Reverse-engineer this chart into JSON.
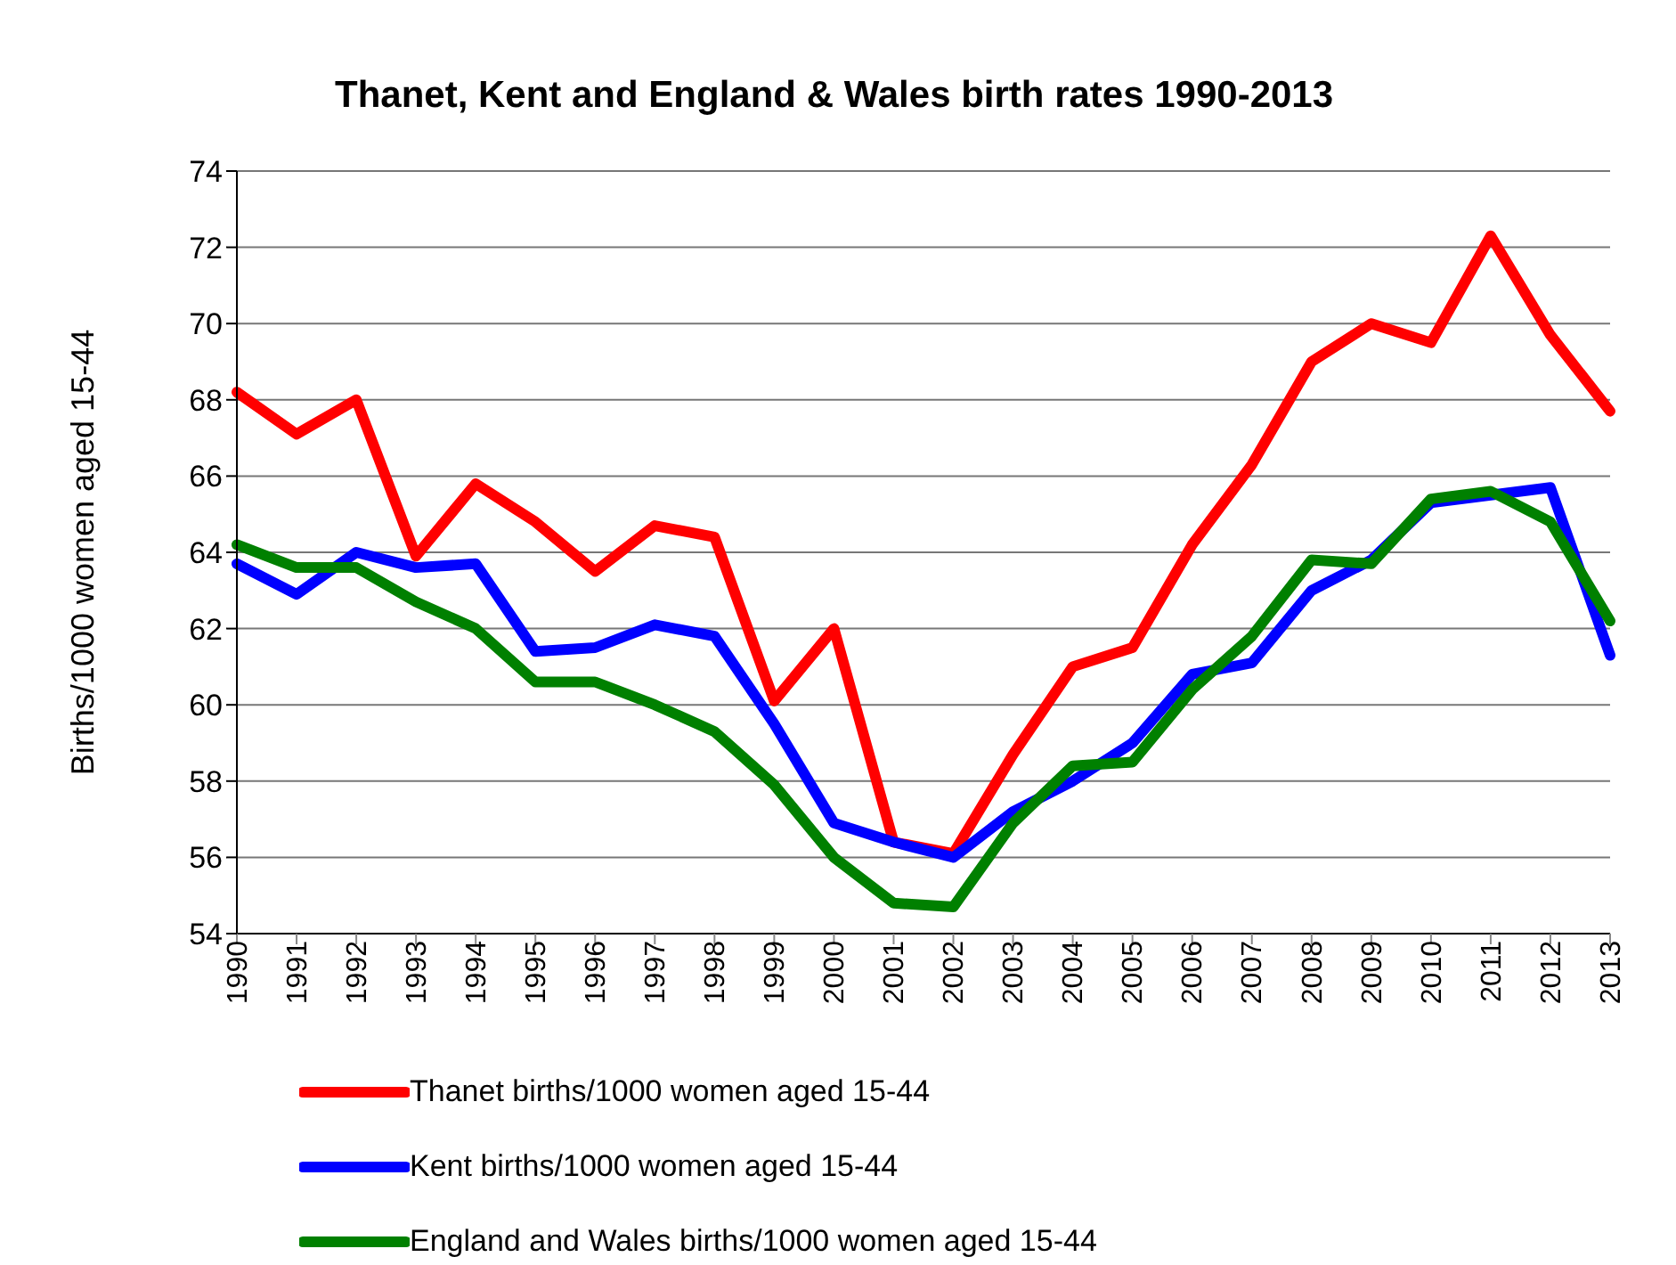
{
  "chart_data": {
    "type": "line",
    "title": "Thanet, Kent and England & Wales birth rates 1990-2013",
    "ylabel": "Births/1000 women aged 15-44",
    "categories": [
      "1990",
      "1991",
      "1992",
      "1993",
      "1994",
      "1995",
      "1996",
      "1997",
      "1998",
      "1999",
      "2000",
      "2001",
      "2002",
      "2003",
      "2004",
      "2005",
      "2006",
      "2007",
      "2008",
      "2009",
      "2010",
      "2011",
      "2012",
      "2013"
    ],
    "series": [
      {
        "name": "Thanet births/1000 women aged 15-44",
        "color": "#ff0000",
        "values": [
          68.2,
          67.1,
          68.0,
          63.9,
          65.8,
          64.8,
          63.5,
          64.7,
          64.4,
          60.1,
          62.0,
          56.4,
          56.1,
          58.7,
          61.0,
          61.5,
          64.2,
          66.3,
          69.0,
          70.0,
          69.5,
          72.3,
          69.7,
          67.7
        ]
      },
      {
        "name": "Kent births/1000 women aged 15-44",
        "color": "#0000ff",
        "values": [
          63.7,
          62.9,
          64.0,
          63.6,
          63.7,
          61.4,
          61.5,
          62.1,
          61.8,
          59.5,
          56.9,
          56.4,
          56.0,
          57.2,
          58.0,
          59.0,
          60.8,
          61.1,
          63.0,
          63.8,
          65.3,
          65.5,
          65.7,
          61.3
        ]
      },
      {
        "name": "England and Wales births/1000 women aged 15-44",
        "color": "#008000",
        "values": [
          64.2,
          63.6,
          63.6,
          62.7,
          62.0,
          60.6,
          60.6,
          60.0,
          59.3,
          57.9,
          56.0,
          54.8,
          54.7,
          56.9,
          58.4,
          58.5,
          60.4,
          61.8,
          63.8,
          63.7,
          65.4,
          65.6,
          64.8,
          62.2
        ]
      }
    ],
    "ylim": [
      54,
      74
    ],
    "yticks": [
      54,
      56,
      58,
      60,
      62,
      64,
      66,
      68,
      70,
      72,
      74
    ],
    "grid": "y",
    "legend": "bottom",
    "marker": "none",
    "line_style": "solid"
  }
}
